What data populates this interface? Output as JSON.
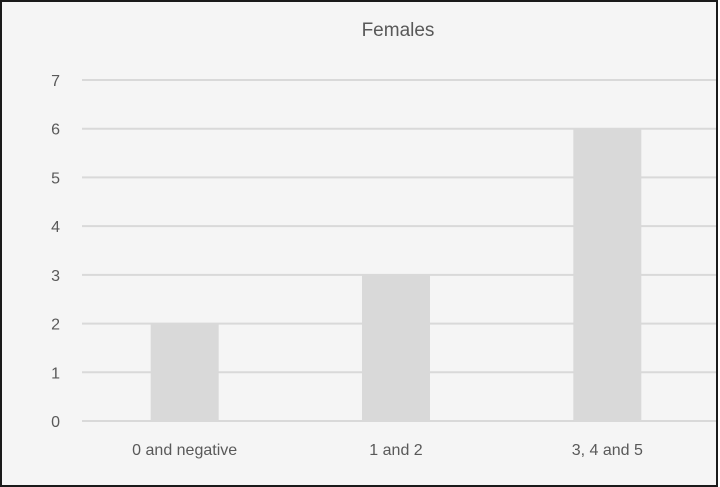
{
  "chart_data": {
    "type": "bar",
    "title": "Females",
    "xlabel": "",
    "ylabel": "",
    "categories": [
      "0 and negative",
      "1 and 2",
      "3, 4 and 5"
    ],
    "values": [
      2,
      3,
      6
    ],
    "ylim": [
      0,
      7
    ],
    "yticks": [
      "0",
      "1",
      "2",
      "3",
      "4",
      "5",
      "6",
      "7"
    ],
    "grid": true,
    "legend": "none",
    "colors": {
      "bar": "#d9d9d9",
      "grid": "#d9d9d9",
      "background": "#f5f5f5",
      "text": "#595959"
    }
  }
}
